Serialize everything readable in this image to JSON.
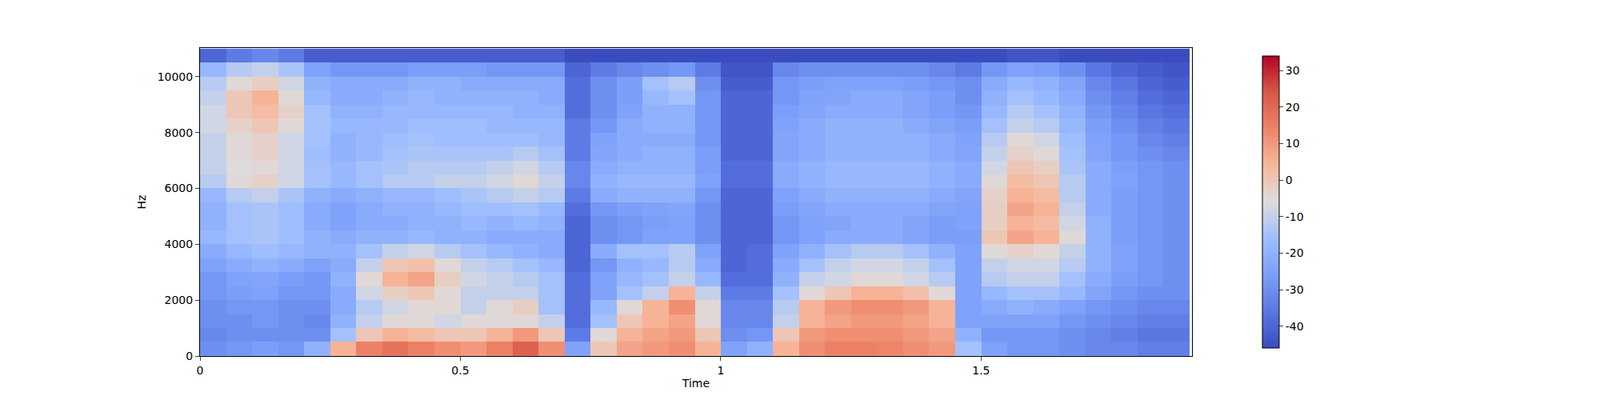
{
  "chart_data": {
    "type": "heatmap",
    "x_label": "Time",
    "y_label": "Hz",
    "xlim": [
      0,
      1.905
    ],
    "xticks": [
      0,
      0.5,
      1,
      1.5
    ],
    "ylim": [
      0,
      11025
    ],
    "yticks": [
      0,
      2000,
      4000,
      6000,
      8000,
      10000
    ],
    "x": [
      0.025,
      0.075,
      0.125,
      0.175,
      0.225,
      0.275,
      0.325,
      0.375,
      0.425,
      0.475,
      0.525,
      0.575,
      0.625,
      0.675,
      0.725,
      0.775,
      0.825,
      0.875,
      0.925,
      0.975,
      1.025,
      1.075,
      1.125,
      1.175,
      1.225,
      1.275,
      1.325,
      1.375,
      1.425,
      1.475,
      1.525,
      1.575,
      1.625,
      1.675,
      1.725,
      1.775,
      1.825,
      1.875
    ],
    "y": [
      250,
      750,
      1250,
      1750,
      2250,
      2750,
      3250,
      3750,
      4250,
      4750,
      5250,
      5750,
      6250,
      6750,
      7250,
      7750,
      8250,
      8750,
      9250,
      9750,
      10250,
      10750
    ],
    "cells_by_time": [
      [
        -30,
        -32,
        -30,
        -30,
        -28,
        -28,
        -25,
        -22,
        -18,
        -20,
        -20,
        -18,
        -12,
        -10,
        -10,
        -10,
        -8,
        -8,
        -10,
        -12,
        -18,
        -40
      ],
      [
        -28,
        -30,
        -30,
        -28,
        -26,
        -25,
        -22,
        -18,
        -15,
        -15,
        -15,
        -12,
        -5,
        -6,
        -5,
        -5,
        -3,
        0,
        0,
        -5,
        -12,
        -35
      ],
      [
        -26,
        -30,
        -28,
        -28,
        -25,
        -24,
        -20,
        -16,
        -14,
        -14,
        -14,
        -10,
        -3,
        -5,
        -3,
        -3,
        0,
        3,
        5,
        -2,
        -10,
        -32
      ],
      [
        -28,
        -30,
        -30,
        -30,
        -28,
        -26,
        -22,
        -18,
        -16,
        -16,
        -16,
        -14,
        -8,
        -8,
        -8,
        -8,
        -5,
        -3,
        -5,
        -8,
        -14,
        -35
      ],
      [
        -20,
        -30,
        -32,
        -30,
        -28,
        -28,
        -25,
        -20,
        -20,
        -22,
        -22,
        -20,
        -15,
        -15,
        -16,
        -15,
        -15,
        -15,
        -18,
        -20,
        -25,
        -42
      ],
      [
        5,
        -15,
        -20,
        -22,
        -22,
        -20,
        -22,
        -20,
        -22,
        -25,
        -25,
        -22,
        -18,
        -18,
        -20,
        -20,
        -18,
        -20,
        -22,
        -22,
        -28,
        -42
      ],
      [
        15,
        0,
        -10,
        -12,
        -8,
        -5,
        -10,
        -15,
        -20,
        -22,
        -22,
        -20,
        -15,
        -15,
        -18,
        -18,
        -18,
        -20,
        -22,
        -22,
        -28,
        -42
      ],
      [
        18,
        5,
        -5,
        -8,
        -2,
        5,
        0,
        -10,
        -20,
        -22,
        -20,
        -18,
        -12,
        -14,
        -15,
        -16,
        -18,
        -18,
        -20,
        -22,
        -28,
        -42
      ],
      [
        15,
        3,
        -5,
        -5,
        0,
        8,
        2,
        -8,
        -18,
        -20,
        -20,
        -18,
        -12,
        -12,
        -14,
        -15,
        -16,
        -18,
        -18,
        -20,
        -26,
        -42
      ],
      [
        12,
        0,
        -8,
        -5,
        -5,
        -2,
        -5,
        -12,
        -20,
        -20,
        -18,
        -16,
        -10,
        -12,
        -14,
        -16,
        -16,
        -18,
        -20,
        -20,
        -26,
        -42
      ],
      [
        10,
        0,
        -5,
        -10,
        -10,
        -8,
        -10,
        -15,
        -20,
        -18,
        -16,
        -14,
        -10,
        -12,
        -14,
        -16,
        -16,
        -18,
        -20,
        -22,
        -26,
        -42
      ],
      [
        15,
        5,
        -5,
        -5,
        -10,
        -10,
        -12,
        -18,
        -22,
        -20,
        -16,
        -12,
        -8,
        -10,
        -14,
        -16,
        -18,
        -18,
        -20,
        -22,
        -28,
        -42
      ],
      [
        22,
        10,
        -5,
        -2,
        -10,
        -12,
        -15,
        -20,
        -22,
        -18,
        -15,
        -10,
        -5,
        -8,
        -12,
        -16,
        -18,
        -20,
        -20,
        -22,
        -28,
        -42
      ],
      [
        12,
        0,
        -10,
        -15,
        -15,
        -15,
        -18,
        -22,
        -22,
        -20,
        -18,
        -12,
        -10,
        -12,
        -15,
        -18,
        -18,
        -20,
        -22,
        -22,
        -28,
        -42
      ],
      [
        -25,
        -35,
        -38,
        -38,
        -38,
        -38,
        -40,
        -40,
        -40,
        -40,
        -38,
        -35,
        -32,
        -32,
        -35,
        -35,
        -35,
        -38,
        -38,
        -38,
        -40,
        -46
      ],
      [
        0,
        -5,
        -15,
        -18,
        -25,
        -25,
        -28,
        -22,
        -30,
        -30,
        -28,
        -22,
        -20,
        -22,
        -24,
        -25,
        -28,
        -30,
        -30,
        -30,
        -35,
        -46
      ],
      [
        8,
        5,
        0,
        -5,
        -15,
        -18,
        -20,
        -15,
        -28,
        -28,
        -26,
        -20,
        -18,
        -20,
        -22,
        -22,
        -22,
        -25,
        -26,
        -26,
        -32,
        -46
      ],
      [
        10,
        8,
        5,
        5,
        -10,
        -15,
        -18,
        -15,
        -25,
        -26,
        -25,
        -20,
        -18,
        -20,
        -20,
        -22,
        -20,
        -20,
        -18,
        -15,
        -30,
        -46
      ],
      [
        12,
        10,
        8,
        12,
        5,
        -10,
        -12,
        -12,
        -25,
        -25,
        -24,
        -20,
        -18,
        -20,
        -20,
        -22,
        -20,
        -20,
        -15,
        -12,
        -28,
        -46
      ],
      [
        5,
        0,
        -5,
        -5,
        -10,
        -18,
        -22,
        -25,
        -30,
        -30,
        -30,
        -28,
        -25,
        -26,
        -26,
        -28,
        -28,
        -28,
        -28,
        -30,
        -35,
        -46
      ],
      [
        -25,
        -30,
        -32,
        -32,
        -35,
        -38,
        -40,
        -40,
        -40,
        -40,
        -40,
        -40,
        -38,
        -38,
        -40,
        -40,
        -40,
        -40,
        -40,
        -42,
        -44,
        -46
      ],
      [
        -20,
        -28,
        -32,
        -32,
        -35,
        -38,
        -38,
        -38,
        -40,
        -40,
        -40,
        -40,
        -38,
        -38,
        -40,
        -40,
        -40,
        -40,
        -40,
        -42,
        -44,
        -46
      ],
      [
        5,
        0,
        -10,
        -12,
        -15,
        -20,
        -22,
        -25,
        -28,
        -28,
        -26,
        -25,
        -22,
        -22,
        -24,
        -24,
        -25,
        -26,
        -28,
        -28,
        -32,
        -46
      ],
      [
        12,
        10,
        5,
        5,
        -5,
        -10,
        -15,
        -20,
        -25,
        -25,
        -24,
        -22,
        -20,
        -20,
        -22,
        -22,
        -22,
        -24,
        -25,
        -26,
        -30,
        -46
      ],
      [
        15,
        12,
        8,
        10,
        0,
        -8,
        -10,
        -15,
        -22,
        -24,
        -22,
        -20,
        -18,
        -18,
        -20,
        -20,
        -20,
        -22,
        -24,
        -25,
        -30,
        -46
      ],
      [
        15,
        12,
        10,
        12,
        5,
        -5,
        -8,
        -12,
        -22,
        -22,
        -22,
        -20,
        -18,
        -18,
        -20,
        -20,
        -20,
        -22,
        -22,
        -25,
        -30,
        -46
      ],
      [
        14,
        12,
        10,
        12,
        5,
        -5,
        -8,
        -12,
        -22,
        -22,
        -22,
        -20,
        -18,
        -18,
        -20,
        -20,
        -20,
        -22,
        -22,
        -25,
        -30,
        -46
      ],
      [
        12,
        10,
        8,
        10,
        2,
        -8,
        -10,
        -15,
        -24,
        -24,
        -22,
        -20,
        -18,
        -18,
        -20,
        -20,
        -22,
        -24,
        -24,
        -26,
        -30,
        -46
      ],
      [
        10,
        8,
        5,
        5,
        -5,
        -12,
        -15,
        -20,
        -26,
        -26,
        -24,
        -22,
        -20,
        -20,
        -22,
        -22,
        -24,
        -26,
        -26,
        -28,
        -32,
        -46
      ],
      [
        -15,
        -20,
        -25,
        -25,
        -25,
        -25,
        -25,
        -25,
        -26,
        -25,
        -25,
        -24,
        -22,
        -22,
        -24,
        -25,
        -26,
        -28,
        -30,
        -30,
        -35,
        -46
      ],
      [
        -25,
        -28,
        -25,
        -22,
        -18,
        -12,
        -10,
        -5,
        0,
        -2,
        -2,
        -3,
        -5,
        -8,
        -10,
        -12,
        -15,
        -18,
        -20,
        -22,
        -28,
        -46
      ],
      [
        -28,
        -28,
        -25,
        -20,
        -15,
        -10,
        -8,
        -3,
        8,
        5,
        8,
        5,
        3,
        0,
        -3,
        -5,
        -10,
        -12,
        -15,
        -18,
        -25,
        -44
      ],
      [
        -28,
        -28,
        -25,
        -22,
        -15,
        -10,
        -8,
        -5,
        5,
        3,
        5,
        3,
        0,
        -2,
        -5,
        -8,
        -12,
        -15,
        -18,
        -20,
        -26,
        -44
      ],
      [
        -30,
        -30,
        -28,
        -25,
        -18,
        -15,
        -12,
        -10,
        -5,
        -8,
        -10,
        -12,
        -12,
        -14,
        -15,
        -16,
        -18,
        -20,
        -22,
        -24,
        -30,
        -46
      ],
      [
        -32,
        -32,
        -30,
        -28,
        -24,
        -22,
        -20,
        -20,
        -20,
        -20,
        -22,
        -22,
        -22,
        -22,
        -24,
        -25,
        -26,
        -28,
        -30,
        -32,
        -36,
        -46
      ],
      [
        -32,
        -34,
        -32,
        -30,
        -28,
        -26,
        -25,
        -25,
        -26,
        -26,
        -26,
        -26,
        -25,
        -26,
        -28,
        -28,
        -30,
        -32,
        -34,
        -36,
        -40,
        -46
      ],
      [
        -34,
        -36,
        -34,
        -32,
        -30,
        -28,
        -28,
        -28,
        -28,
        -28,
        -28,
        -28,
        -28,
        -28,
        -30,
        -32,
        -34,
        -36,
        -38,
        -40,
        -42,
        -46
      ],
      [
        -34,
        -36,
        -34,
        -32,
        -30,
        -30,
        -30,
        -30,
        -30,
        -30,
        -30,
        -30,
        -30,
        -30,
        -32,
        -34,
        -36,
        -38,
        -40,
        -42,
        -44,
        -46
      ]
    ],
    "colorbar_range": [
      -46,
      34
    ],
    "colorbar_ticks": [
      -40,
      -30,
      -20,
      -10,
      0,
      10,
      20,
      30
    ]
  }
}
